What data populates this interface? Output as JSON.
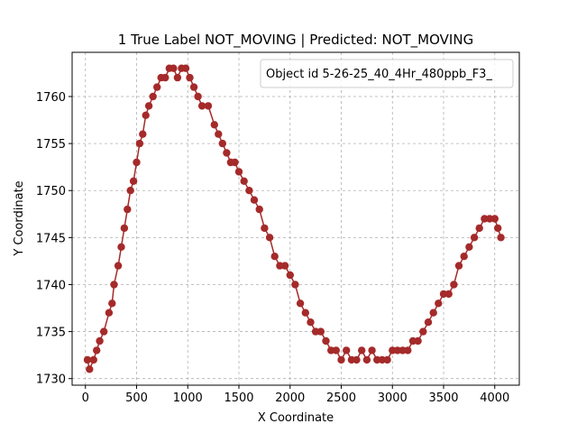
{
  "chart_data": {
    "type": "line",
    "title": "1 True Label NOT_MOVING | Predicted: NOT_MOVING",
    "xlabel": "X Coordinate",
    "ylabel": "Y Coordinate",
    "xlim": [
      -130,
      4240
    ],
    "ylim": [
      1729.3,
      1764.7
    ],
    "xticks": [
      0,
      500,
      1000,
      1500,
      2000,
      2500,
      3000,
      3500,
      4000
    ],
    "yticks": [
      1730,
      1735,
      1740,
      1745,
      1750,
      1755,
      1760
    ],
    "grid": true,
    "legend": {
      "position": "top-right",
      "entries": [
        "Object id 5-26-25_40_4Hr_480ppb_F3_"
      ]
    },
    "series_color": "#a52a2a",
    "series": [
      {
        "name": "Object id 5-26-25_40_4Hr_480ppb_F3_",
        "x": [
          20,
          40,
          80,
          110,
          140,
          180,
          230,
          260,
          280,
          320,
          350,
          380,
          410,
          440,
          470,
          500,
          530,
          560,
          590,
          620,
          660,
          700,
          740,
          780,
          820,
          860,
          900,
          940,
          980,
          1020,
          1060,
          1100,
          1140,
          1200,
          1260,
          1300,
          1340,
          1380,
          1420,
          1460,
          1500,
          1550,
          1600,
          1650,
          1700,
          1750,
          1800,
          1850,
          1900,
          1950,
          2000,
          2050,
          2100,
          2150,
          2200,
          2250,
          2300,
          2350,
          2400,
          2450,
          2500,
          2550,
          2600,
          2650,
          2700,
          2750,
          2800,
          2850,
          2900,
          2950,
          3000,
          3050,
          3100,
          3150,
          3200,
          3250,
          3300,
          3350,
          3400,
          3450,
          3500,
          3550,
          3600,
          3650,
          3700,
          3750,
          3800,
          3850,
          3900,
          3950,
          4000,
          4030,
          4060
        ],
        "y": [
          1732,
          1731,
          1732,
          1733,
          1734,
          1735,
          1737,
          1738,
          1740,
          1742,
          1744,
          1746,
          1748,
          1750,
          1751,
          1753,
          1755,
          1756,
          1758,
          1759,
          1760,
          1761,
          1762,
          1762,
          1763,
          1763,
          1762,
          1763,
          1763,
          1762,
          1761,
          1760,
          1759,
          1759,
          1757,
          1756,
          1755,
          1754,
          1753,
          1753,
          1752,
          1751,
          1750,
          1749,
          1748,
          1746,
          1745,
          1743,
          1742,
          1742,
          1741,
          1740,
          1738,
          1737,
          1736,
          1735,
          1735,
          1734,
          1733,
          1733,
          1732,
          1733,
          1732,
          1732,
          1733,
          1732,
          1733,
          1732,
          1732,
          1732,
          1733,
          1733,
          1733,
          1733,
          1734,
          1734,
          1735,
          1736,
          1737,
          1738,
          1739,
          1739,
          1740,
          1742,
          1743,
          1744,
          1745,
          1746,
          1747,
          1747,
          1747,
          1746,
          1745
        ]
      }
    ]
  }
}
